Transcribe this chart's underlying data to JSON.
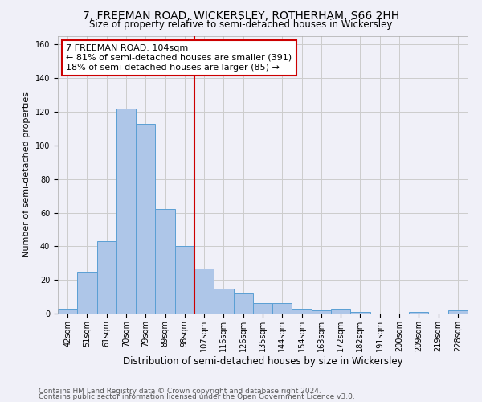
{
  "title1": "7, FREEMAN ROAD, WICKERSLEY, ROTHERHAM, S66 2HH",
  "title2": "Size of property relative to semi-detached houses in Wickersley",
  "xlabel": "Distribution of semi-detached houses by size in Wickersley",
  "ylabel": "Number of semi-detached properties",
  "categories": [
    "42sqm",
    "51sqm",
    "61sqm",
    "70sqm",
    "79sqm",
    "89sqm",
    "98sqm",
    "107sqm",
    "116sqm",
    "126sqm",
    "135sqm",
    "144sqm",
    "154sqm",
    "163sqm",
    "172sqm",
    "182sqm",
    "191sqm",
    "200sqm",
    "209sqm",
    "219sqm",
    "228sqm"
  ],
  "values": [
    3,
    25,
    43,
    122,
    113,
    62,
    40,
    27,
    15,
    12,
    6,
    6,
    3,
    2,
    3,
    1,
    0,
    0,
    1,
    0,
    2
  ],
  "bar_color": "#aec6e8",
  "bar_edge_color": "#5a9fd4",
  "vline_idx": 7,
  "vline_color": "#cc0000",
  "annotation_text": "7 FREEMAN ROAD: 104sqm\n← 81% of semi-detached houses are smaller (391)\n18% of semi-detached houses are larger (85) →",
  "annotation_box_color": "white",
  "annotation_box_edge_color": "#cc0000",
  "ylim": [
    0,
    165
  ],
  "yticks": [
    0,
    20,
    40,
    60,
    80,
    100,
    120,
    140,
    160
  ],
  "grid_color": "#cccccc",
  "background_color": "#f0f0f8",
  "footer1": "Contains HM Land Registry data © Crown copyright and database right 2024.",
  "footer2": "Contains public sector information licensed under the Open Government Licence v3.0.",
  "title1_fontsize": 10,
  "title2_fontsize": 8.5,
  "xlabel_fontsize": 8.5,
  "ylabel_fontsize": 8,
  "tick_fontsize": 7,
  "annotation_fontsize": 8,
  "footer_fontsize": 6.5
}
